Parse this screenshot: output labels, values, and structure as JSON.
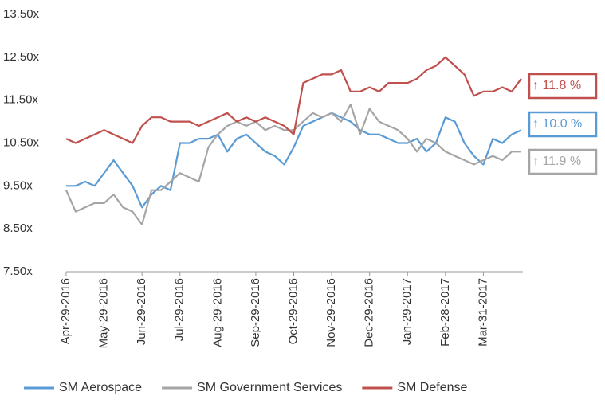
{
  "chart_data": {
    "type": "line",
    "categories": [
      "Apr-29-2016",
      null,
      null,
      null,
      "May-29-2016",
      null,
      null,
      null,
      "Jun-29-2016",
      null,
      null,
      null,
      "Jul-29-2016",
      null,
      null,
      null,
      "Aug-29-2016",
      null,
      null,
      null,
      "Sep-29-2016",
      null,
      null,
      null,
      "Oct-29-2016",
      null,
      null,
      null,
      "Nov-29-2016",
      null,
      null,
      null,
      "Dec-29-2016",
      null,
      null,
      null,
      "Jan-29-2017",
      null,
      null,
      null,
      "Feb-28-2017",
      null,
      null,
      null,
      "Mar-31-2017",
      null,
      null,
      null,
      null
    ],
    "series": [
      {
        "name": "SM Aerospace",
        "color": "#5b9bd5",
        "values": [
          9.5,
          9.5,
          9.6,
          9.5,
          9.8,
          10.1,
          9.8,
          9.5,
          9.0,
          9.3,
          9.5,
          9.4,
          10.5,
          10.5,
          10.6,
          10.6,
          10.7,
          10.3,
          10.6,
          10.7,
          10.5,
          10.3,
          10.2,
          10.0,
          10.4,
          10.9,
          11.0,
          11.1,
          11.2,
          11.1,
          11.0,
          10.8,
          10.7,
          10.7,
          10.6,
          10.5,
          10.5,
          10.6,
          10.3,
          10.5,
          11.1,
          11.0,
          10.5,
          10.2,
          10.0,
          10.6,
          10.5,
          10.7,
          10.8
        ]
      },
      {
        "name": "SM Government Services",
        "color": "#a5a5a5",
        "values": [
          9.4,
          8.9,
          9.0,
          9.1,
          9.1,
          9.3,
          9.0,
          8.9,
          8.6,
          9.4,
          9.4,
          9.6,
          9.8,
          9.7,
          9.6,
          10.4,
          10.7,
          10.9,
          11.0,
          10.9,
          11.0,
          10.8,
          10.9,
          10.8,
          10.8,
          11.0,
          11.2,
          11.1,
          11.2,
          11.0,
          11.4,
          10.7,
          11.3,
          11.0,
          10.9,
          10.8,
          10.6,
          10.3,
          10.6,
          10.5,
          10.3,
          10.2,
          10.1,
          10.0,
          10.1,
          10.2,
          10.1,
          10.3,
          10.3
        ]
      },
      {
        "name": "SM Defense",
        "color": "#c0504d",
        "values": [
          10.6,
          10.5,
          10.6,
          10.7,
          10.8,
          10.7,
          10.6,
          10.5,
          10.9,
          11.1,
          11.1,
          11.0,
          11.0,
          11.0,
          10.9,
          11.0,
          11.1,
          11.2,
          11.0,
          11.1,
          11.0,
          11.1,
          11.0,
          10.9,
          10.7,
          11.9,
          12.0,
          12.1,
          12.1,
          12.2,
          11.7,
          11.7,
          11.8,
          11.7,
          11.9,
          11.9,
          11.9,
          12.0,
          12.2,
          12.3,
          12.5,
          12.3,
          12.1,
          11.6,
          11.7,
          11.7,
          11.8,
          11.7,
          12.0
        ]
      }
    ],
    "ylim": [
      7.5,
      13.5
    ],
    "yticks": [
      {
        "value": 7.5,
        "label": "7.50x"
      },
      {
        "value": 8.5,
        "label": "8.50x"
      },
      {
        "value": 9.5,
        "label": "9.50x"
      },
      {
        "value": 10.5,
        "label": "10.50x"
      },
      {
        "value": 11.5,
        "label": "11.50x"
      },
      {
        "value": 12.5,
        "label": "12.50x"
      },
      {
        "value": 13.5,
        "label": "13.50x"
      }
    ],
    "grid": false,
    "legend": "bottom",
    "annotations": [
      {
        "text": "↑ 11.8 %",
        "color": "#c0504d"
      },
      {
        "text": "↑ 10.0 %",
        "color": "#5b9bd5"
      },
      {
        "text": "↑ 11.9 %",
        "color": "#a5a5a5"
      }
    ]
  }
}
